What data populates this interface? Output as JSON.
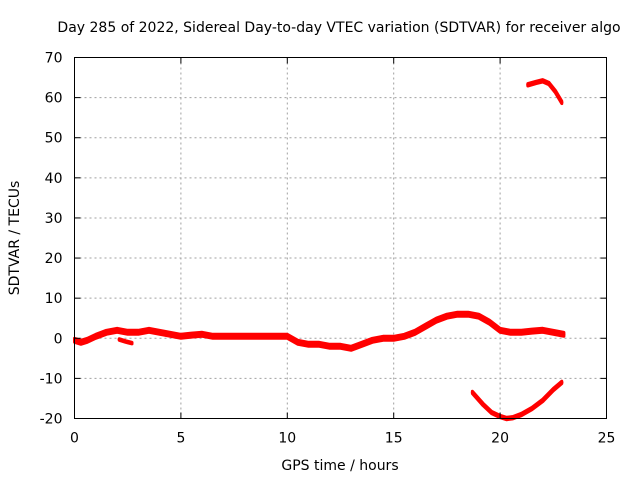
{
  "chart_data": {
    "type": "line",
    "title": "Day 285 of 2022, Sidereal Day-to-day VTEC variation (SDTVAR) for receiver algo",
    "xlabel": "GPS time / hours",
    "ylabel": "SDTVAR / TECUs",
    "xlim": [
      0,
      25
    ],
    "ylim": [
      -20,
      70
    ],
    "xticks": [
      0,
      5,
      10,
      15,
      20,
      25
    ],
    "yticks": [
      -20,
      -10,
      0,
      10,
      20,
      30,
      40,
      50,
      60,
      70
    ],
    "grid": true,
    "legend": "none",
    "series_color": "#ff0000",
    "series": [
      {
        "name": "main",
        "band": 1.0,
        "x": [
          0.0,
          0.3,
          0.6,
          1.0,
          1.5,
          2.0,
          2.5,
          3.0,
          3.5,
          4.0,
          4.5,
          5.0,
          5.5,
          6.0,
          6.5,
          7.0,
          7.5,
          8.0,
          8.5,
          9.0,
          9.5,
          10.0,
          10.5,
          11.0,
          11.5,
          12.0,
          12.5,
          13.0,
          13.5,
          14.0,
          14.5,
          15.0,
          15.5,
          16.0,
          16.5,
          17.0,
          17.5,
          18.0,
          18.5,
          19.0,
          19.5,
          20.0,
          20.5,
          21.0,
          21.5,
          22.0,
          22.5,
          23.0
        ],
        "y": [
          -0.5,
          -1.0,
          -0.5,
          0.5,
          1.5,
          2.0,
          1.5,
          1.5,
          2.0,
          1.5,
          1.0,
          0.5,
          0.8,
          1.0,
          0.5,
          0.5,
          0.5,
          0.5,
          0.5,
          0.5,
          0.5,
          0.5,
          -1.0,
          -1.5,
          -1.5,
          -2.0,
          -2.0,
          -2.5,
          -1.5,
          -0.5,
          0.0,
          0.0,
          0.5,
          1.5,
          3.0,
          4.5,
          5.5,
          6.0,
          6.0,
          5.5,
          4.0,
          2.0,
          1.5,
          1.5,
          1.8,
          2.0,
          1.5,
          1.0
        ]
      },
      {
        "name": "lower-arc",
        "band": 0.6,
        "x": [
          18.7,
          19.2,
          19.6,
          20.0,
          20.3,
          20.6,
          21.0,
          21.5,
          22.0,
          22.5,
          22.9
        ],
        "y": [
          -13.5,
          -16.5,
          -18.5,
          -19.5,
          -20.0,
          -19.8,
          -19.0,
          -17.5,
          -15.5,
          -12.8,
          -11.0
        ]
      },
      {
        "name": "upper-arc",
        "band": 0.6,
        "x": [
          21.3,
          21.7,
          22.0,
          22.3,
          22.6,
          22.9
        ],
        "y": [
          63.2,
          63.8,
          64.2,
          63.5,
          61.5,
          58.8
        ]
      },
      {
        "name": "spur",
        "band": 0.4,
        "x": [
          2.1,
          2.4,
          2.7
        ],
        "y": [
          -0.3,
          -0.8,
          -1.2
        ]
      }
    ]
  }
}
